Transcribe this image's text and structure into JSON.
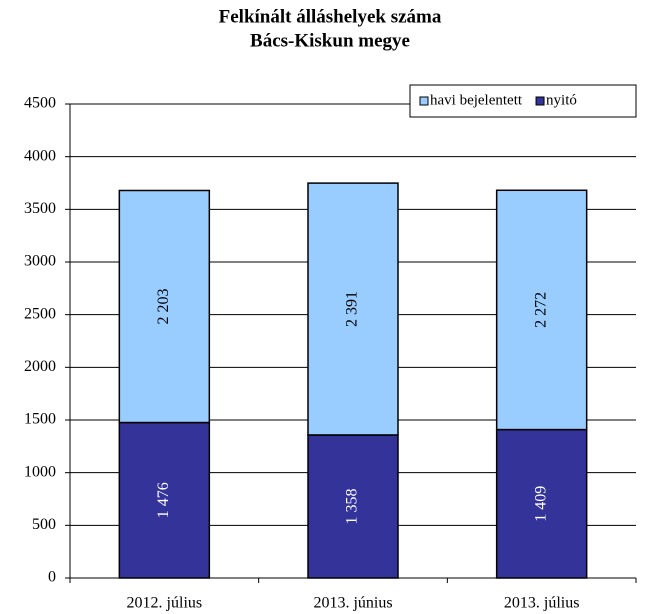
{
  "chart_data": {
    "type": "stacked_bar",
    "title": [
      "Felkínált álláshelyek száma",
      "Bács-Kiskun megye"
    ],
    "categories": [
      "2012. július",
      "2013. június",
      "2013. július"
    ],
    "series": [
      {
        "name": "nyitó",
        "color": "#333399",
        "values": [
          1476,
          1358,
          1409
        ],
        "value_labels": [
          "1 476",
          "1 358",
          "1 409"
        ]
      },
      {
        "name": "havi bejelentett",
        "color": "#99ccff",
        "values": [
          2203,
          2391,
          2272
        ],
        "value_labels": [
          "2 203",
          "2 391",
          "2 272"
        ]
      }
    ],
    "ylim": [
      0,
      4500
    ],
    "yticks": [
      0,
      500,
      1000,
      1500,
      2000,
      2500,
      3000,
      3500,
      4000,
      4500
    ],
    "grid": true,
    "legend": "top-right"
  }
}
